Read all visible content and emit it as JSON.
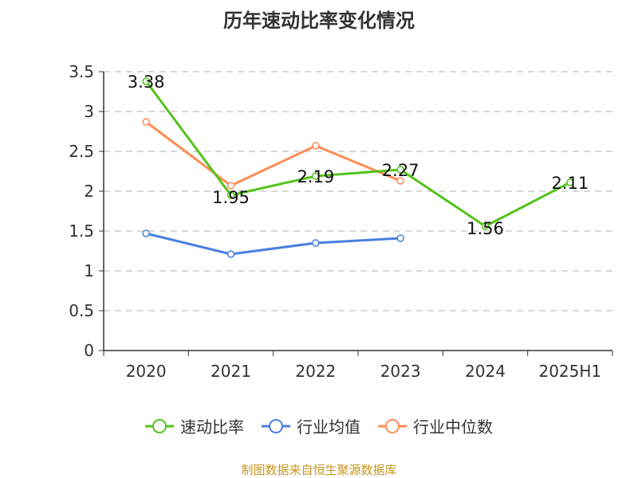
{
  "chart_data": {
    "type": "line",
    "title": "历年速动比率变化情况",
    "categories": [
      "2020",
      "2021",
      "2022",
      "2023",
      "2024",
      "2025H1"
    ],
    "ylim": [
      0,
      3.5
    ],
    "yticks": [
      "0",
      "0.5",
      "1",
      "1.5",
      "2",
      "2.5",
      "3",
      "3.5"
    ],
    "grid": true,
    "legend_position": "bottom",
    "series": [
      {
        "name": "速动比率",
        "color": "#52c41a",
        "values": [
          3.38,
          1.95,
          2.19,
          2.27,
          1.56,
          2.11
        ],
        "labels": [
          "3.38",
          "1.95",
          "2.19",
          "2.27",
          "1.56",
          "2.11"
        ]
      },
      {
        "name": "行业均值",
        "color": "#4a7fe0",
        "values": [
          1.47,
          1.21,
          1.35,
          1.41,
          null,
          null
        ]
      },
      {
        "name": "行业中位数",
        "color": "#ff8c55",
        "values": [
          2.87,
          2.07,
          2.57,
          2.13,
          null,
          null
        ]
      }
    ]
  },
  "source": "制图数据来自恒生聚源数据库"
}
